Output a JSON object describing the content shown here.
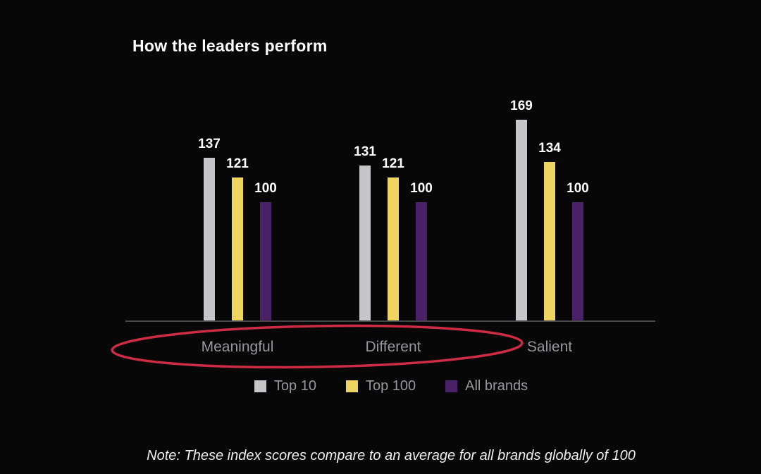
{
  "title": "How the leaders perform",
  "chart_data": {
    "type": "bar",
    "categories": [
      "Meaningful",
      "Different",
      "Salient"
    ],
    "series": [
      {
        "name": "Top 10",
        "color": "#c6c6c8",
        "values": [
          137,
          131,
          169
        ]
      },
      {
        "name": "Top 100",
        "color": "#eed561",
        "values": [
          121,
          121,
          134
        ]
      },
      {
        "name": "All brands",
        "color": "#4a2166",
        "values": [
          100,
          100,
          100
        ]
      }
    ],
    "value_labels": true,
    "ylim": [
      0,
      180
    ],
    "grid": false,
    "legend_position": "bottom",
    "axis_color": "#46464a",
    "category_label_color": "#97979b",
    "value_label_color": "#ffffff",
    "background_color": "#070707"
  },
  "annotation": {
    "type": "ellipse",
    "color": "#ce2c44",
    "around": [
      "Meaningful",
      "Different"
    ]
  },
  "note": "Note: These index scores compare to an average for all brands globally of 100"
}
